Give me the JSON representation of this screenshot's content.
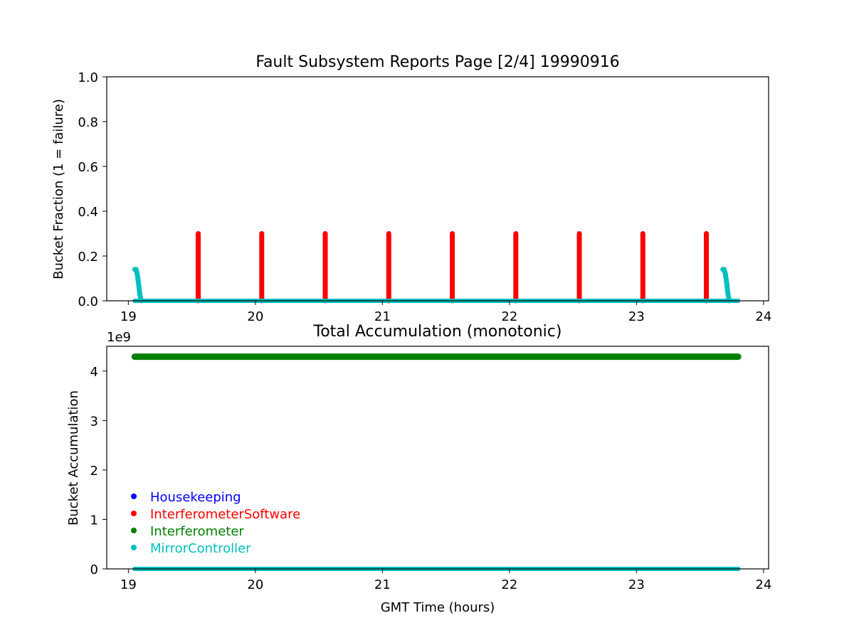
{
  "chart_data": [
    {
      "type": "scatter",
      "title": "Fault Subsystem Reports Page [2/4] 19990916",
      "xlabel": "",
      "ylabel": "Bucket Fraction (1 = failure)",
      "xlim": [
        18.83,
        24.04
      ],
      "ylim": [
        0,
        1.0
      ],
      "xticks": [
        "19",
        "20",
        "21",
        "22",
        "23",
        "24"
      ],
      "yticks": [
        "0.0",
        "0.2",
        "0.4",
        "0.6",
        "0.8",
        "1.0"
      ],
      "grid": false,
      "series": [
        {
          "name": "InterferometerSoftware",
          "color": "#ff0000",
          "baseline": {
            "x": [
              19.05,
              23.8
            ],
            "y": 0
          },
          "spikes": [
            {
              "x": 19.55,
              "y": 0.3
            },
            {
              "x": 20.05,
              "y": 0.3
            },
            {
              "x": 20.55,
              "y": 0.3
            },
            {
              "x": 21.05,
              "y": 0.3
            },
            {
              "x": 21.55,
              "y": 0.3
            },
            {
              "x": 22.05,
              "y": 0.3
            },
            {
              "x": 22.55,
              "y": 0.3
            },
            {
              "x": 23.05,
              "y": 0.3
            },
            {
              "x": 23.55,
              "y": 0.3
            }
          ]
        },
        {
          "name": "MirrorController",
          "color": "#00bfbf",
          "baseline": {
            "x": [
              19.05,
              23.8
            ],
            "y": 0
          },
          "bumps": [
            {
              "x": [
                19.05,
                19.06,
                19.07,
                19.08,
                19.09,
                19.1
              ],
              "y": [
                0.14,
                0.14,
                0.12,
                0.08,
                0.03,
                0.0
              ]
            },
            {
              "x": [
                23.68,
                23.69,
                23.7,
                23.71,
                23.72,
                23.73
              ],
              "y": [
                0.14,
                0.14,
                0.12,
                0.08,
                0.03,
                0.0
              ]
            }
          ]
        }
      ]
    },
    {
      "type": "scatter",
      "title": "Total Accumulation (monotonic)",
      "xlabel": "GMT Time (hours)",
      "ylabel": "Bucket Accumulation",
      "offset_text": "1e9",
      "xlim": [
        18.83,
        24.04
      ],
      "ylim": [
        0,
        4.5
      ],
      "xticks": [
        "19",
        "20",
        "21",
        "22",
        "23",
        "24"
      ],
      "yticks": [
        "0",
        "1",
        "2",
        "3",
        "4"
      ],
      "grid": false,
      "legend_position": "lower-left",
      "series": [
        {
          "name": "Housekeeping",
          "color": "#0000ff",
          "x": [
            19.05,
            23.8
          ],
          "y": [
            0,
            0
          ]
        },
        {
          "name": "InterferometerSoftware",
          "color": "#ff0000",
          "x": [
            19.05,
            23.8
          ],
          "y": [
            0,
            0
          ]
        },
        {
          "name": "Interferometer",
          "color": "#008000",
          "x": [
            19.05,
            23.8
          ],
          "y": [
            4.29,
            4.29
          ]
        },
        {
          "name": "MirrorController",
          "color": "#00bfbf",
          "x": [
            19.05,
            23.8
          ],
          "y": [
            0,
            0
          ]
        }
      ]
    }
  ]
}
